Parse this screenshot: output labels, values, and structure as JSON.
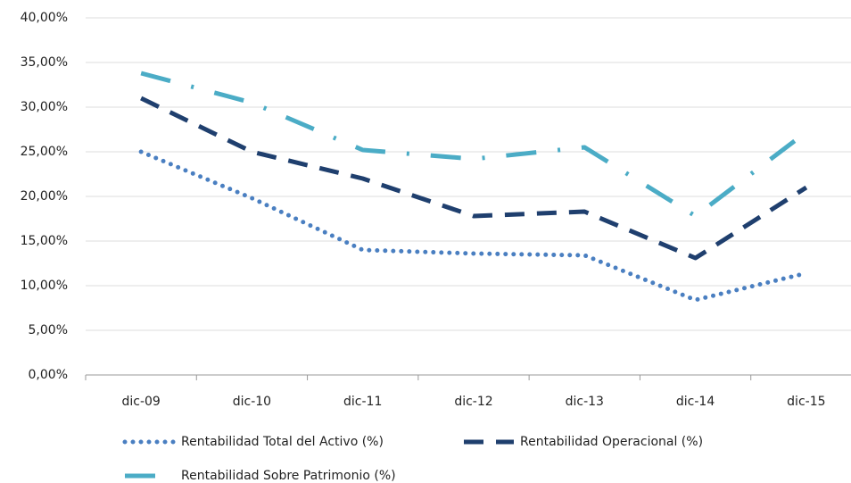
{
  "chart_data": {
    "type": "line",
    "categories": [
      "dic-09",
      "dic-10",
      "dic-11",
      "dic-12",
      "dic-13",
      "dic-14",
      "dic-15"
    ],
    "series": [
      {
        "name": "Rentabilidad Total del Activo (%)",
        "color": "#4a7fc1",
        "dash": "dotted",
        "values": [
          25.0,
          19.8,
          14.0,
          13.6,
          13.4,
          8.4,
          11.4
        ]
      },
      {
        "name": "Rentabilidad Operacional (%)",
        "color": "#1f3f6e",
        "dash": "dashed",
        "values": [
          31.0,
          25.0,
          22.0,
          17.8,
          18.3,
          13.1,
          21.0
        ]
      },
      {
        "name": "Rentabilidad Sobre Patrimonio (%)",
        "color": "#4bacc6",
        "dash": "dashdot",
        "values": [
          33.8,
          30.5,
          25.2,
          24.2,
          25.5,
          17.8,
          27.2
        ]
      }
    ],
    "ylim": [
      0,
      40
    ],
    "yticks": [
      {
        "value": 0,
        "label": "0,00%"
      },
      {
        "value": 5,
        "label": "5,00%"
      },
      {
        "value": 10,
        "label": "10,00%"
      },
      {
        "value": 15,
        "label": "15,00%"
      },
      {
        "value": 20,
        "label": "20,00%"
      },
      {
        "value": 25,
        "label": "25,00%"
      },
      {
        "value": 30,
        "label": "30,00%"
      },
      {
        "value": 35,
        "label": "35,00%"
      },
      {
        "value": 40,
        "label": "40,00%"
      }
    ],
    "grid": true
  }
}
